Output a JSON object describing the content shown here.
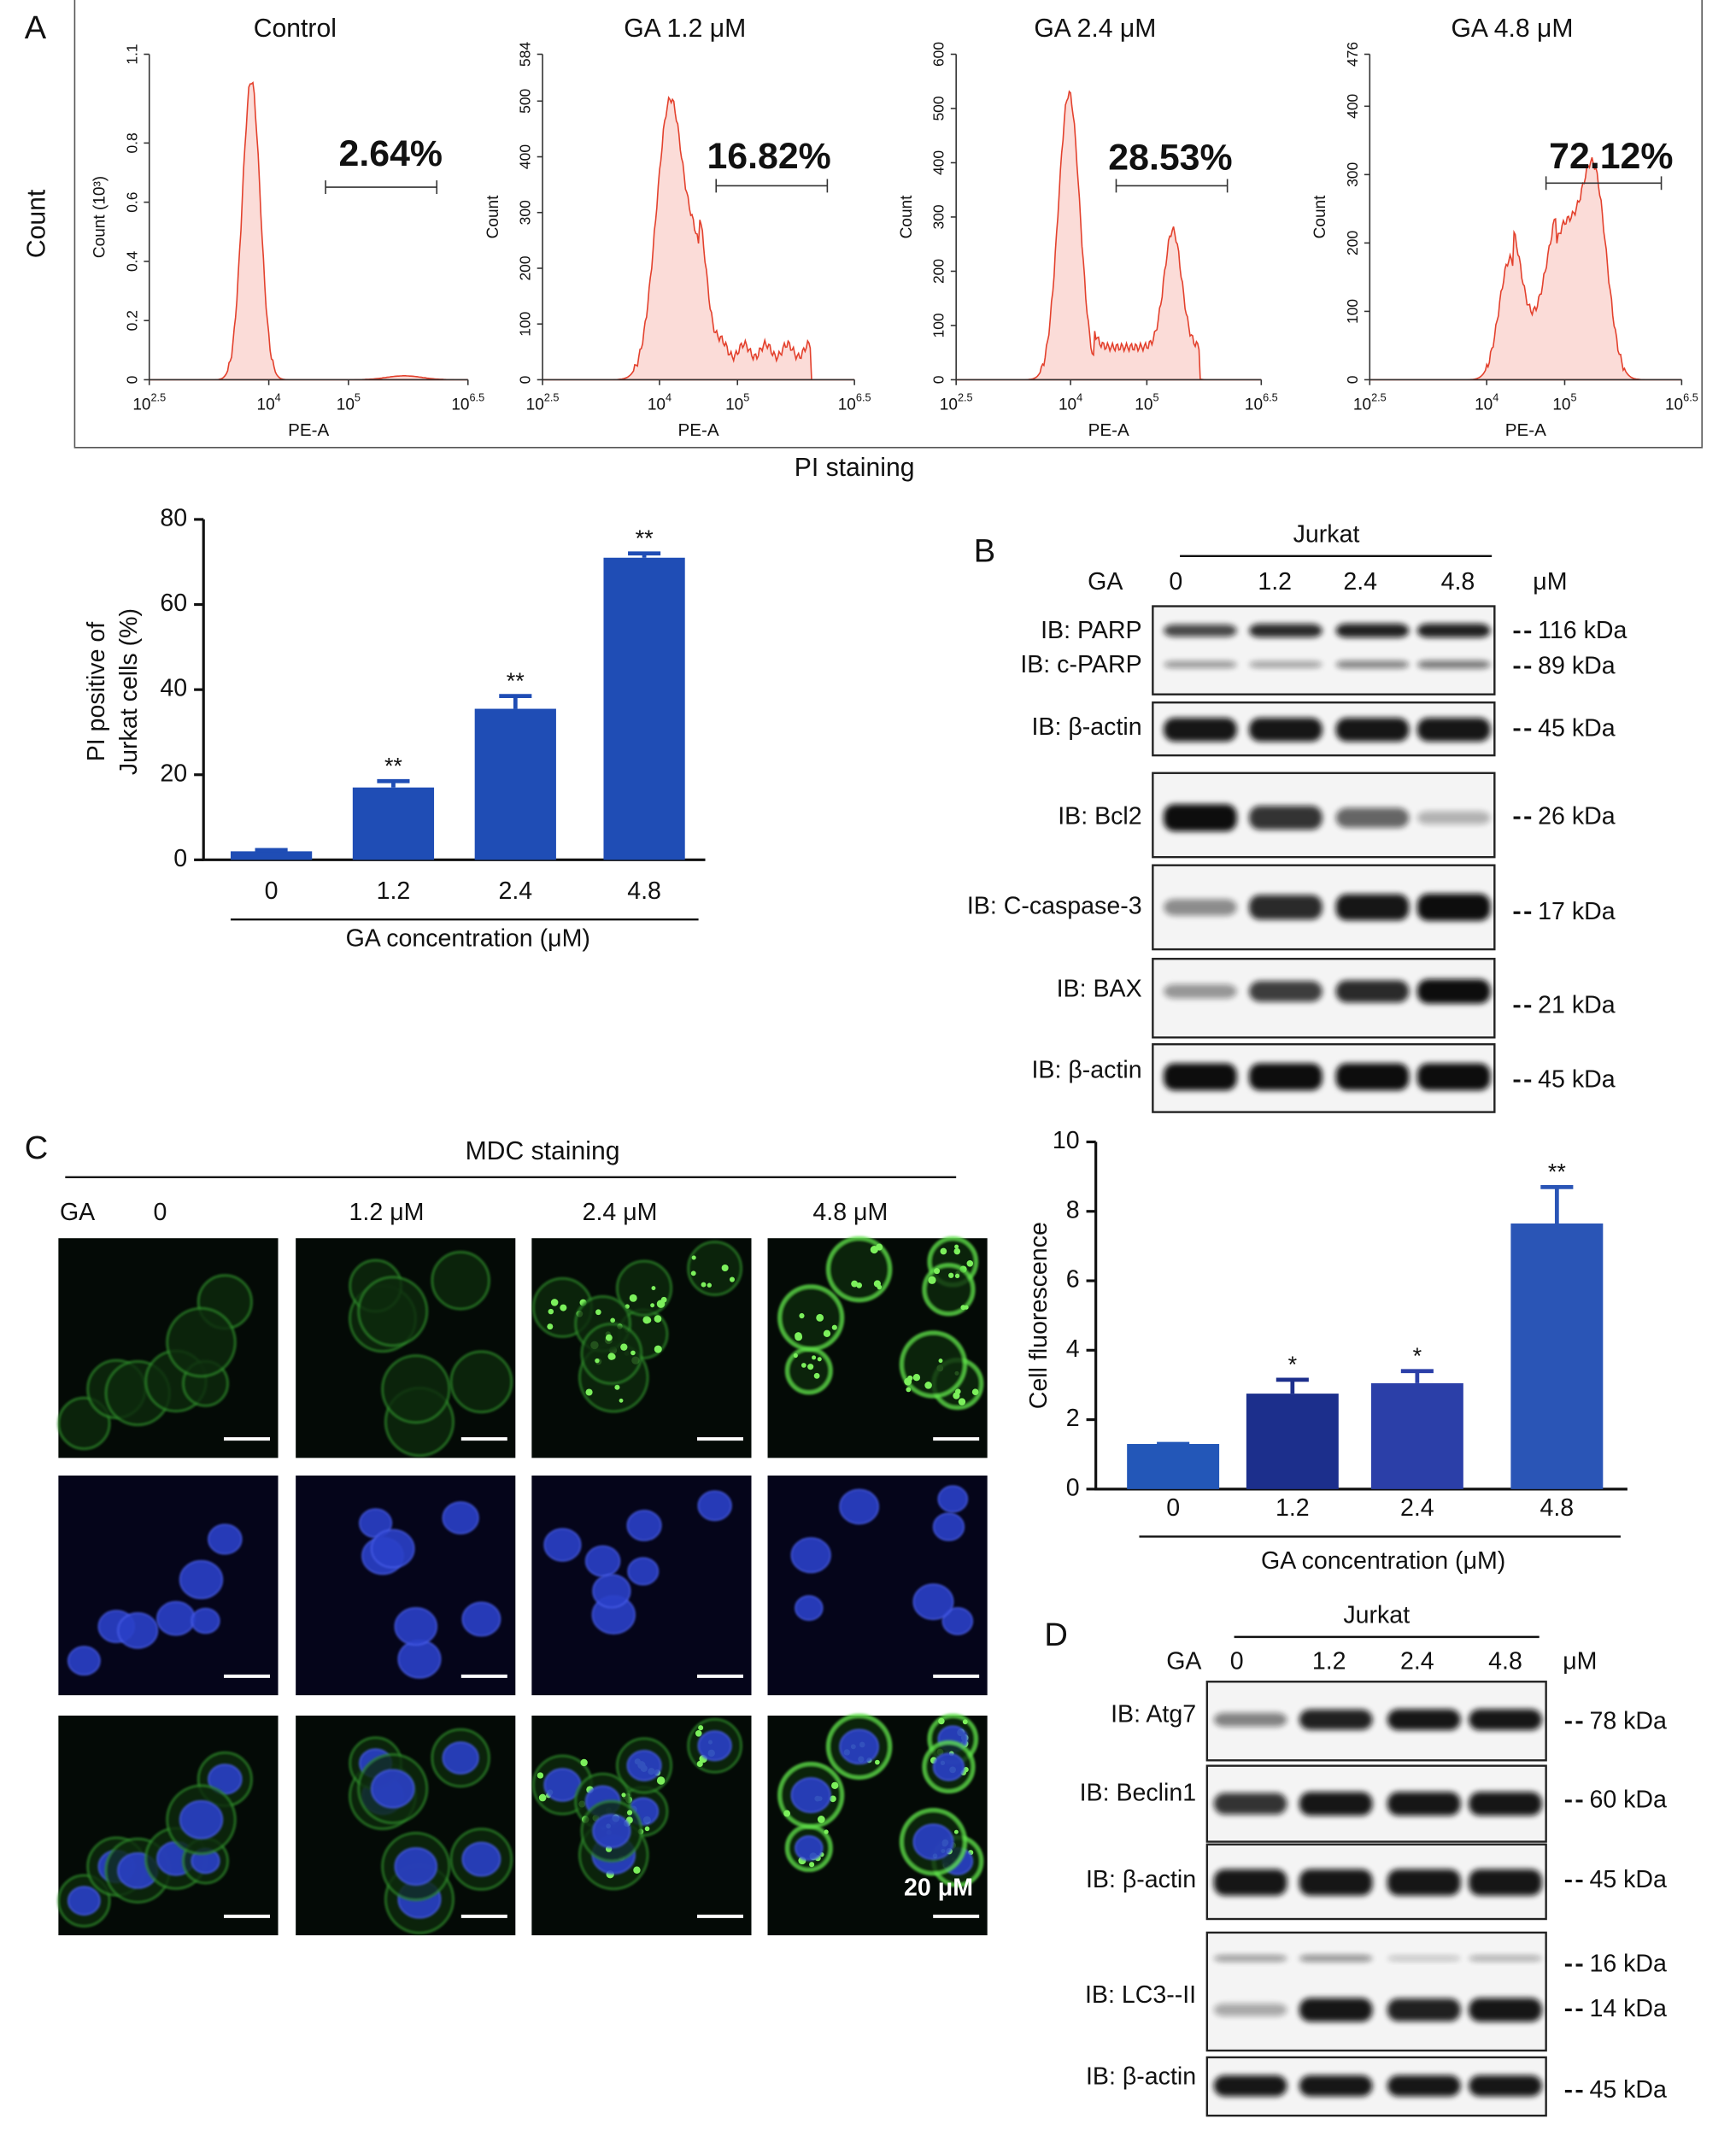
{
  "panel_labels": [
    "A",
    "B",
    "C",
    "D"
  ],
  "flow_cytometry": {
    "y_label": "Count",
    "x_label": "PI staining",
    "x_tick_base": "10",
    "panels": [
      {
        "title": "Control",
        "y_axis_label": "Count (10³)",
        "x_axis_label": "PE-A",
        "gate_label": "2.64%",
        "ylim": [
          0,
          1.1
        ],
        "yticks": [
          0,
          0.2,
          0.4,
          0.6,
          0.8,
          1.1
        ],
        "xlim": [
          2.5,
          6.5
        ],
        "xticks": [
          2.5,
          4,
          5,
          6.5
        ]
      },
      {
        "title": "GA 1.2 μM",
        "y_axis_label": "Count",
        "x_axis_label": "PE-A",
        "gate_label": "16.82%",
        "ylim": [
          0,
          584
        ],
        "yticks": [
          0,
          100,
          200,
          300,
          400,
          500,
          584
        ],
        "xlim": [
          2.5,
          6.5
        ],
        "xticks": [
          2.5,
          4,
          5,
          6.5
        ]
      },
      {
        "title": "GA 2.4 μM",
        "y_axis_label": "Count",
        "x_axis_label": "PE-A",
        "gate_label": "28.53%",
        "ylim": [
          0,
          600
        ],
        "yticks": [
          0,
          100,
          200,
          300,
          400,
          500,
          600
        ],
        "xlim": [
          2.5,
          6.5
        ],
        "xticks": [
          2.5,
          4,
          5,
          6.5
        ]
      },
      {
        "title": "GA 4.8 μM",
        "y_axis_label": "Count",
        "x_axis_label": "PE-A",
        "gate_label": "72.12%",
        "ylim": [
          0,
          476
        ],
        "yticks": [
          0,
          100,
          200,
          300,
          400,
          476
        ],
        "xlim": [
          2.5,
          6.5
        ],
        "xticks": [
          2.5,
          4,
          5,
          6.5
        ]
      }
    ]
  },
  "chart_data": [
    {
      "type": "bar",
      "categories": [
        "0",
        "1.2",
        "2.4",
        "4.8"
      ],
      "values": [
        2,
        17,
        35.5,
        71
      ],
      "errors": [
        0.3,
        1.5,
        3,
        1
      ],
      "colors": [
        "#1f4db5",
        "#1f4db5",
        "#1f4db5",
        "#1f4db5"
      ],
      "ylim": [
        0,
        80
      ],
      "yticks": [
        0,
        20,
        40,
        60,
        80
      ],
      "y_label": [
        "PI positive of",
        "Jurkat cells (%)"
      ],
      "x_label": "GA concentration (μM)",
      "annotations": [
        null,
        "**",
        "**",
        "**"
      ]
    },
    {
      "type": "bar",
      "categories": [
        "0",
        "1.2",
        "2.4",
        "4.8"
      ],
      "values": [
        1.3,
        2.75,
        3.05,
        7.65
      ],
      "errors": [
        0,
        0.4,
        0.35,
        1.05
      ],
      "colors": [
        "#2357b8",
        "#1c2f8c",
        "#2b3fa8",
        "#2a55b6"
      ],
      "ylim": [
        0,
        10
      ],
      "yticks": [
        0,
        2,
        4,
        6,
        8,
        10
      ],
      "y_label": [
        "Cell fluorescence"
      ],
      "x_label": "GA concentration (μM)",
      "annotations": [
        null,
        "*",
        "*",
        "**"
      ]
    }
  ],
  "western_blot_B": {
    "cell_line": "Jurkat",
    "treatment_label": "GA",
    "doses": [
      "0",
      "1.2",
      "2.4",
      "4.8"
    ],
    "unit": "μM",
    "boxes": [
      {
        "labels": [
          "IB: PARP",
          "IB: c-PARP"
        ],
        "sizes": [
          "116 kDa",
          "89 kDa"
        ]
      },
      {
        "labels": [
          "IB: β-actin"
        ],
        "sizes": [
          "45 kDa"
        ]
      },
      {
        "labels": [
          "IB: Bcl2"
        ],
        "sizes": [
          "26 kDa"
        ]
      },
      {
        "labels": [
          "IB: C-caspase-3"
        ],
        "sizes": [
          "17 kDa"
        ]
      },
      {
        "labels": [
          "IB: BAX"
        ],
        "sizes": [
          "21 kDa"
        ]
      },
      {
        "labels": [
          "IB: β-actin"
        ],
        "sizes": [
          "45 kDa"
        ]
      }
    ]
  },
  "mdc_staining": {
    "title": "MDC staining",
    "treatment_label": "GA",
    "columns": [
      "0",
      "1.2 μM",
      "2.4 μM",
      "4.8 μM"
    ],
    "scale_bar": "20 μM"
  },
  "western_blot_D": {
    "cell_line": "Jurkat",
    "treatment_label": "GA",
    "doses": [
      "0",
      "1.2",
      "2.4",
      "4.8"
    ],
    "unit": "μM",
    "boxes": [
      {
        "labels": [
          "IB: Atg7"
        ],
        "sizes": [
          "78 kDa"
        ]
      },
      {
        "labels": [
          "IB: Beclin1"
        ],
        "sizes": [
          "60 kDa"
        ]
      },
      {
        "labels": [
          "IB: β-actin"
        ],
        "sizes": [
          "45 kDa"
        ]
      },
      {
        "labels": [
          "IB: LC3--II"
        ],
        "sizes": [
          "16 kDa",
          "14 kDa"
        ]
      },
      {
        "labels": [
          "IB: β-actin"
        ],
        "sizes": [
          "45 kDa"
        ]
      }
    ]
  }
}
